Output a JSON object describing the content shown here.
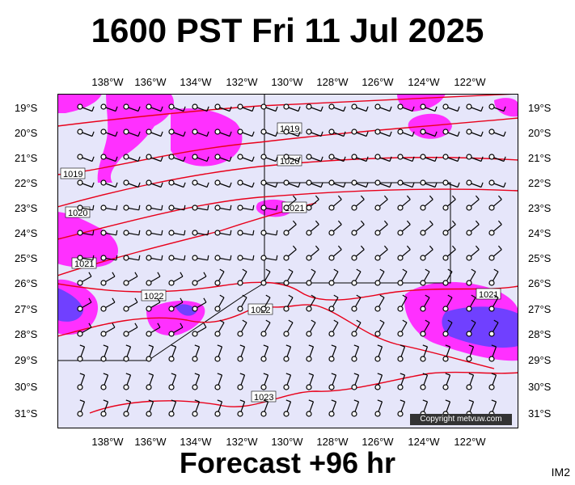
{
  "title": "1600 PST Fri 11 Jul 2025",
  "subtitle": "Forecast +96 hr",
  "image_code": "IM2",
  "copyright": "Copyright metvuw.com",
  "lon_labels": [
    "138°W",
    "136°W",
    "134°W",
    "132°W",
    "130°W",
    "128°W",
    "126°W",
    "124°W",
    "122°W"
  ],
  "lat_labels": [
    "19°S",
    "20°S",
    "21°S",
    "22°S",
    "23°S",
    "24°S",
    "25°S",
    "26°S",
    "27°S",
    "28°S",
    "29°S",
    "30°S",
    "31°S"
  ],
  "isobar_labels": [
    "1019",
    "1019",
    "1020",
    "1020",
    "1021",
    "1021",
    "1021",
    "1022",
    "1022",
    "1023"
  ],
  "colors": {
    "background": "#e6e6fa",
    "isobar": "#e8001a",
    "rain_light": "#ff30ff",
    "rain_heavy": "#7040ff",
    "border": "#000000"
  }
}
